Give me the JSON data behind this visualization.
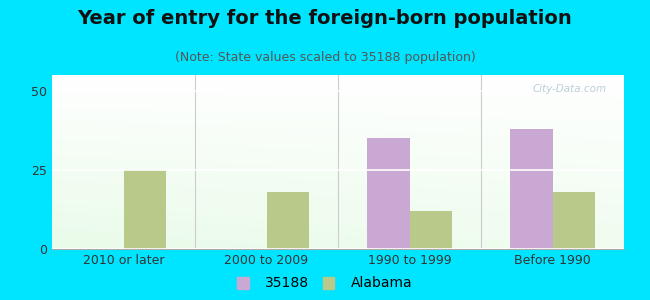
{
  "title": "Year of entry for the foreign-born population",
  "subtitle": "(Note: State values scaled to 35188 population)",
  "categories": [
    "2010 or later",
    "2000 to 2009",
    "1990 to 1999",
    "Before 1990"
  ],
  "series_35188": [
    0,
    0,
    35,
    38
  ],
  "series_alabama": [
    25,
    18,
    12,
    18
  ],
  "bar_color_35188": "#c9a8d4",
  "bar_color_alabama": "#b8c98a",
  "background_outer": "#00e5ff",
  "ylim": [
    0,
    55
  ],
  "yticks": [
    0,
    25,
    50
  ],
  "bar_width": 0.3,
  "legend_label_35188": "35188",
  "legend_label_alabama": "Alabama",
  "title_fontsize": 14,
  "subtitle_fontsize": 9,
  "tick_fontsize": 9,
  "legend_fontsize": 10,
  "watermark": "City-Data.com"
}
